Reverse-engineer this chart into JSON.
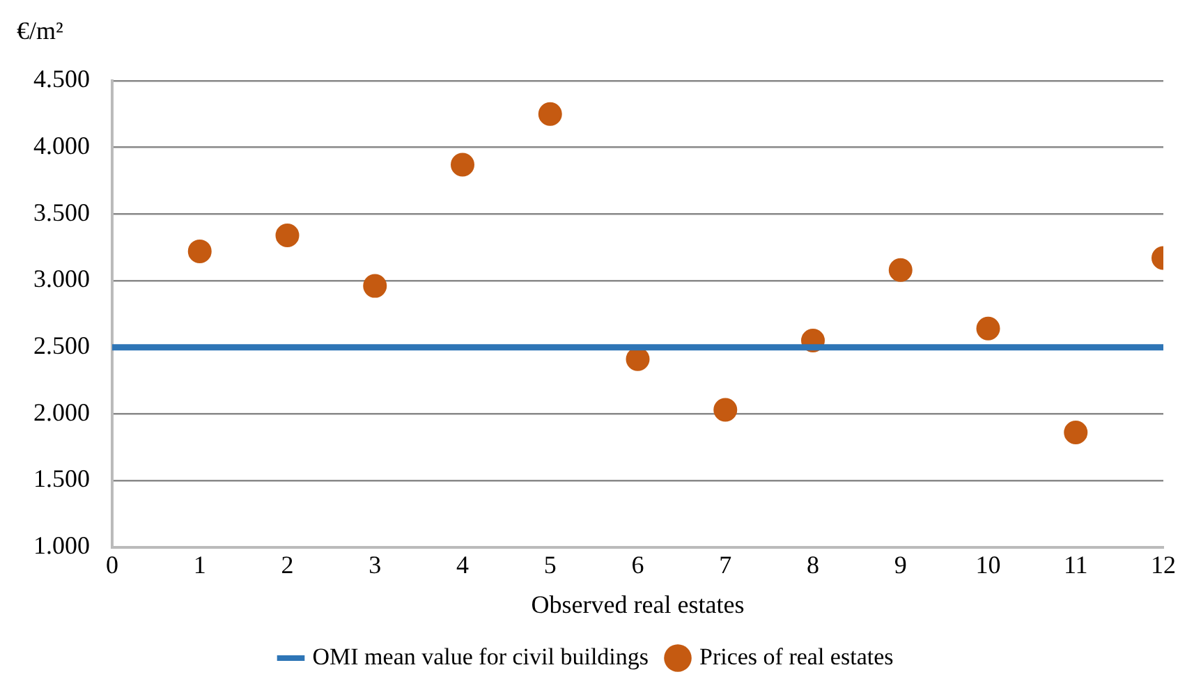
{
  "chart_data": {
    "type": "scatter",
    "xlabel": "Observed real estates",
    "ylabel": "€/m²",
    "xlim": [
      0,
      12
    ],
    "xticks": [
      0,
      1,
      2,
      3,
      4,
      5,
      6,
      7,
      8,
      9,
      10,
      11,
      12
    ],
    "ylim": [
      1000,
      4500
    ],
    "yticks": [
      {
        "value": 1000,
        "label": "1.000"
      },
      {
        "value": 1500,
        "label": "1.500"
      },
      {
        "value": 2000,
        "label": "2.000"
      },
      {
        "value": 2500,
        "label": "2.500"
      },
      {
        "value": 3000,
        "label": "3.000"
      },
      {
        "value": 3500,
        "label": "3.500"
      },
      {
        "value": 4000,
        "label": "4.000"
      },
      {
        "value": 4500,
        "label": "4.500"
      }
    ],
    "grid": "y",
    "legend": "bottom",
    "series": [
      {
        "name": "OMI mean value for civil buildings",
        "type": "line",
        "color": "#2e75b6",
        "marker": "none",
        "line_style": "solid",
        "x": [
          0,
          12
        ],
        "values": [
          2500,
          2500
        ]
      },
      {
        "name": "Prices of real estates",
        "color": "#c55a11",
        "marker": "circle",
        "x": [
          1,
          2,
          3,
          4,
          5,
          6,
          7,
          8,
          9,
          10,
          11,
          12
        ],
        "values": [
          3220,
          3340,
          2960,
          3870,
          4250,
          2410,
          2030,
          2550,
          3080,
          2640,
          1860,
          3170
        ]
      }
    ]
  }
}
